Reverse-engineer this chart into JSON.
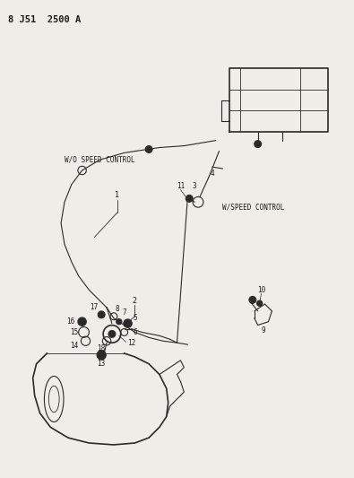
{
  "title": "8 J51  2500 A",
  "bg_color": "#f0ede8",
  "line_color": "#2a2a2a",
  "text_color": "#1a1a1a",
  "label_wo_speed": "W/O SPEED CONTROL",
  "label_w_speed": "W/SPEED CONTROL",
  "fig_width": 3.95,
  "fig_height": 5.33,
  "dpi": 100
}
